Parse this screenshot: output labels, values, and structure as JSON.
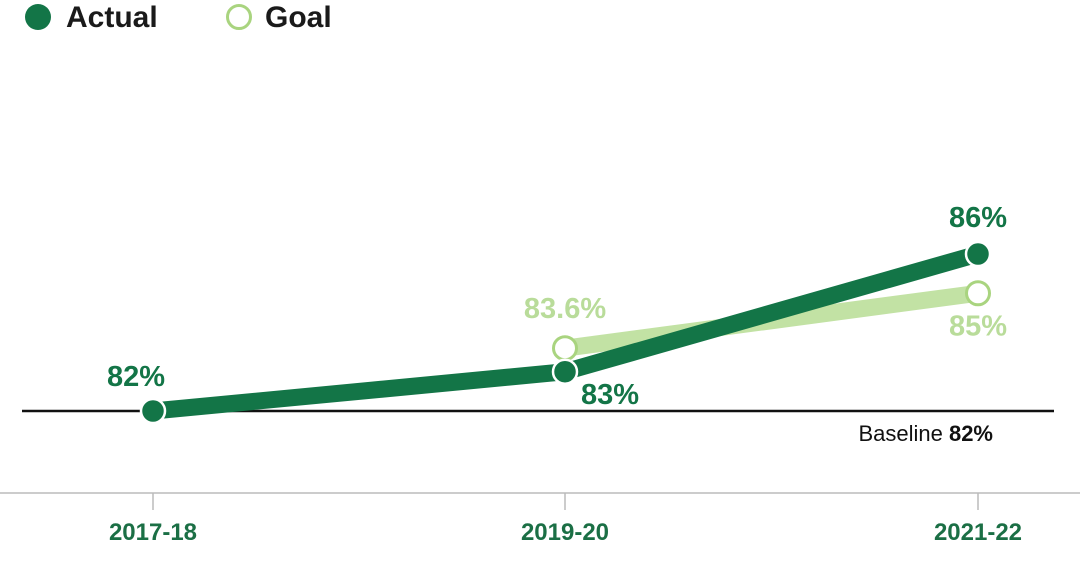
{
  "colors": {
    "actual": "#137547",
    "goal": "#c2e2a4",
    "goal_label": "#b9dc9a",
    "goal_marker_stroke": "#a9d47f",
    "baseline": "#111111",
    "axis": "#bbbbbb",
    "tick_text": "#1b6f45"
  },
  "chart_data": {
    "type": "line",
    "categories": [
      "2017-18",
      "2019-20",
      "2021-22"
    ],
    "series": [
      {
        "name": "Actual",
        "values": [
          82,
          83,
          86
        ],
        "labels": [
          "82%",
          "83%",
          "86%"
        ],
        "marker": "filled"
      },
      {
        "name": "Goal",
        "values": [
          null,
          83.6,
          85
        ],
        "labels": [
          "",
          "83.6%",
          "85%"
        ],
        "marker": "open"
      }
    ],
    "baseline": {
      "value": 82,
      "prefix": "Baseline",
      "value_label": "82%"
    },
    "legend_position": "top-left",
    "grid": false
  }
}
